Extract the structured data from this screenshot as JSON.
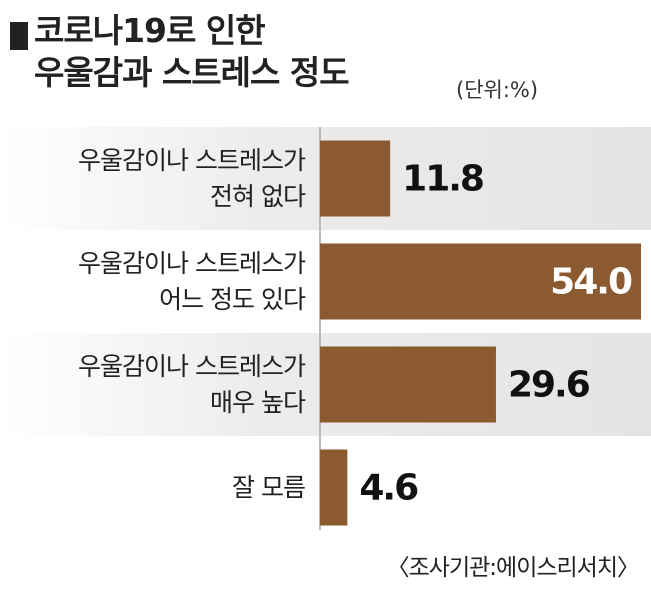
{
  "chart_data": {
    "type": "bar",
    "orientation": "horizontal",
    "title": "코로나19로 인한\n우울감과 스트레스 정도",
    "subtitle": "(단위:%)",
    "categories": [
      "우울감이나 스트레스가\n전혀 없다",
      "우울감이나 스트레스가\n어느 정도 있다",
      "우울감이나 스트레스가\n매우 높다",
      "잘 모름"
    ],
    "values": [
      11.8,
      54,
      29.6,
      4.6
    ],
    "value_labels": [
      "11.8",
      "54.0",
      "29.6",
      "4.6"
    ],
    "color": "#8c5a30",
    "source": "〈조사기관:에이스리서치〉"
  }
}
